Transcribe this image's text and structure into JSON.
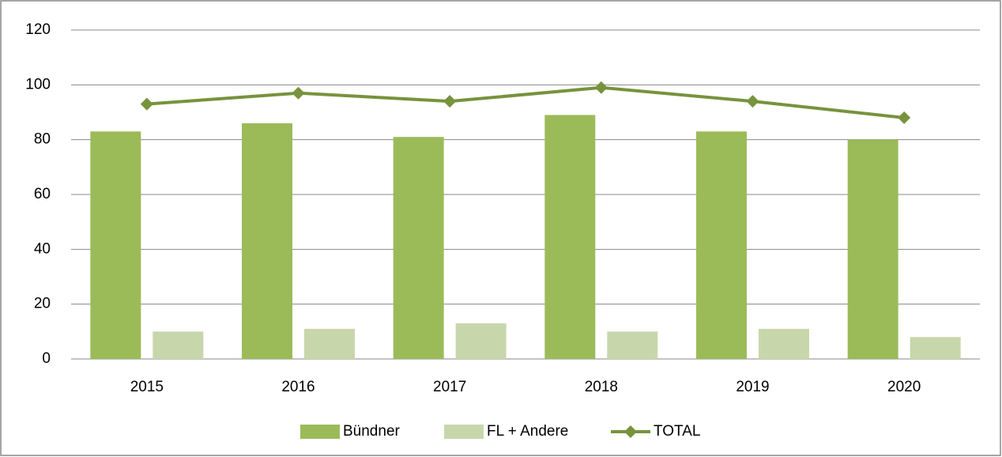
{
  "chart_data": {
    "type": "bar",
    "categories": [
      "2015",
      "2016",
      "2017",
      "2018",
      "2019",
      "2020"
    ],
    "series": [
      {
        "name": "Bündner",
        "color": "#9bbb59",
        "values": [
          83,
          86,
          81,
          89,
          83,
          80
        ]
      },
      {
        "name": "FL + Andere",
        "color": "#c8d7ab",
        "values": [
          10,
          11,
          13,
          10,
          11,
          8
        ]
      },
      {
        "name": "TOTAL",
        "type": "line",
        "color": "#77933c",
        "values": [
          93,
          97,
          94,
          99,
          94,
          88
        ]
      }
    ],
    "ylim": [
      0,
      120
    ],
    "yticks": [
      0,
      20,
      40,
      60,
      80,
      100,
      120
    ],
    "grid": true,
    "legend": "bottom"
  }
}
